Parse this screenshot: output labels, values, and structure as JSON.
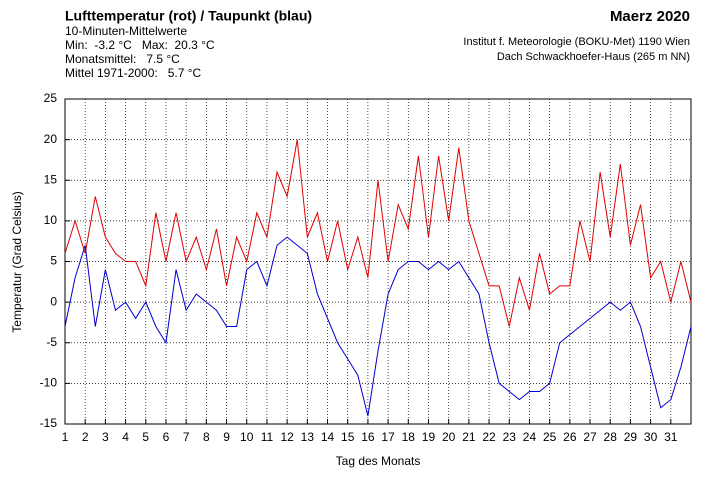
{
  "chart_data": {
    "type": "line",
    "title": "Lufttemperatur (rot) / Taupunkt (blau)",
    "subtitle": "10-Minuten-Mittelwerte",
    "stats": [
      "Min:  -3.2 °C   Max:  20.3 °C",
      "Monatsmittel:   7.5 °C",
      "Mittel 1971-2000:   5.7 °C"
    ],
    "period": "Maerz 2020",
    "source": [
      "Institut f. Meteorologie (BOKU-Met) 1190 Wien",
      "Dach Schwackhoefer-Haus (265 m NN)"
    ],
    "xlabel": "Tag des Monats",
    "ylabel": "Temperatur (Grad Celsius)",
    "xlim": [
      1,
      32
    ],
    "ylim": [
      -15,
      25
    ],
    "xticks": [
      1,
      2,
      3,
      4,
      5,
      6,
      7,
      8,
      9,
      10,
      11,
      12,
      13,
      14,
      15,
      16,
      17,
      18,
      19,
      20,
      21,
      22,
      23,
      24,
      25,
      26,
      27,
      28,
      29,
      30,
      31
    ],
    "yticks": [
      -15,
      -10,
      -5,
      0,
      5,
      10,
      15,
      20,
      25
    ],
    "grid": true,
    "x": [
      1,
      1.5,
      2,
      2.5,
      3,
      3.5,
      4,
      4.5,
      5,
      5.5,
      6,
      6.5,
      7,
      7.5,
      8,
      8.5,
      9,
      9.5,
      10,
      10.5,
      11,
      11.5,
      12,
      12.5,
      13,
      13.5,
      14,
      14.5,
      15,
      15.5,
      16,
      16.5,
      17,
      17.5,
      18,
      18.5,
      19,
      19.5,
      20,
      20.5,
      21,
      21.5,
      22,
      22.5,
      23,
      23.5,
      24,
      24.5,
      25,
      25.5,
      26,
      26.5,
      27,
      27.5,
      28,
      28.5,
      29,
      29.5,
      30,
      30.5,
      31,
      31.5,
      32
    ],
    "series": [
      {
        "color": "#e00000",
        "values": [
          6,
          10,
          6,
          13,
          8,
          6,
          5,
          5,
          2,
          11,
          5,
          11,
          5,
          8,
          4,
          9,
          2,
          8,
          5,
          11,
          8,
          16,
          13,
          20,
          8,
          11,
          5,
          10,
          4,
          8,
          3,
          15,
          5,
          12,
          9,
          18,
          8,
          18,
          10,
          19,
          10,
          6,
          2,
          2,
          -3,
          3,
          -1,
          6,
          1,
          2,
          2,
          10,
          5,
          16,
          8,
          17,
          7,
          12,
          3,
          5,
          0,
          5,
          0
        ]
      },
      {
        "color": "#0000d0",
        "values": [
          -3,
          3,
          7,
          -3,
          4,
          -1,
          0,
          -2,
          0,
          -3,
          -5,
          4,
          -1,
          1,
          0,
          -1,
          -3,
          -3,
          4,
          5,
          2,
          7,
          8,
          7,
          6,
          1,
          -2,
          -5,
          -7,
          -9,
          -14,
          -6,
          1,
          4,
          5,
          5,
          4,
          5,
          4,
          5,
          3,
          1,
          -5,
          -10,
          -11,
          -12,
          -11,
          -11,
          -10,
          -5,
          -4,
          -3,
          -2,
          -1,
          0,
          -1,
          0,
          -3,
          -8,
          -13,
          -12,
          -8,
          -3
        ]
      }
    ]
  }
}
